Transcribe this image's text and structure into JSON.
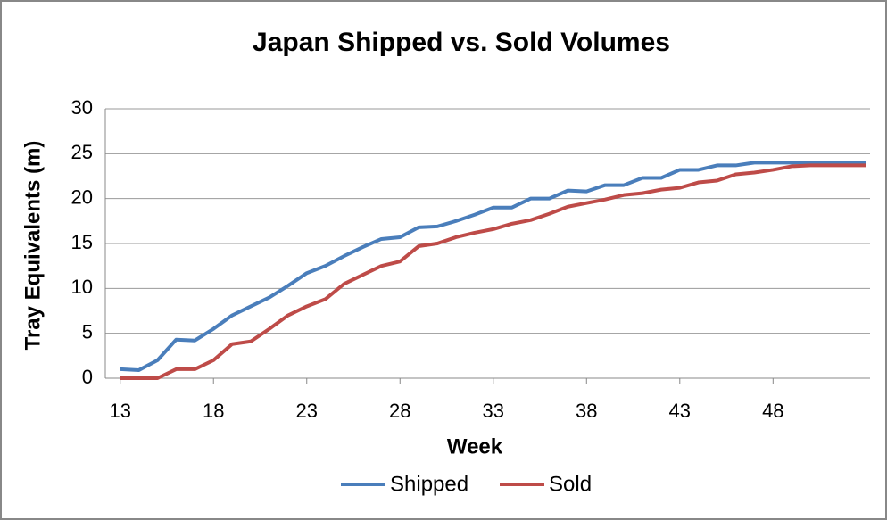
{
  "chart_data": {
    "type": "line",
    "title": "Japan Shipped vs. Sold Volumes",
    "x_label": "Week",
    "y_label": "Tray Equivalents (m)",
    "x": [
      13,
      14,
      15,
      16,
      17,
      18,
      19,
      20,
      21,
      22,
      23,
      24,
      25,
      26,
      27,
      28,
      29,
      30,
      31,
      32,
      33,
      34,
      35,
      36,
      37,
      38,
      39,
      40,
      41,
      42,
      43,
      44,
      45,
      46,
      47,
      48,
      49,
      50,
      51,
      52,
      53
    ],
    "series": [
      {
        "name": "Shipped",
        "color": "#4a7ebb",
        "values": [
          1.0,
          0.9,
          2,
          4.3,
          4.2,
          5.5,
          7,
          8,
          9,
          10.3,
          11.7,
          12.5,
          13.6,
          14.6,
          15.5,
          15.7,
          16.8,
          16.9,
          17.5,
          18.2,
          19,
          19,
          20,
          20,
          20.9,
          20.8,
          21.5,
          21.5,
          22.3,
          22.3,
          23.2,
          23.2,
          23.7,
          23.7,
          24,
          24,
          24,
          24,
          24,
          24,
          24
        ]
      },
      {
        "name": "Sold",
        "color": "#be4b48",
        "values": [
          0,
          0,
          0,
          1,
          1,
          2,
          3.8,
          4.1,
          5.5,
          7,
          8,
          8.8,
          10.5,
          11.5,
          12.5,
          13,
          14.7,
          15,
          15.7,
          16.2,
          16.6,
          17.2,
          17.6,
          18.3,
          19.1,
          19.5,
          19.9,
          20.4,
          20.6,
          21,
          21.2,
          21.8,
          22,
          22.7,
          22.9,
          23.2,
          23.6,
          23.7,
          23.7,
          23.7,
          23.7
        ]
      }
    ],
    "xlim": [
      12.2,
      53.2
    ],
    "xticks": [
      13,
      18,
      23,
      28,
      33,
      38,
      43,
      48
    ],
    "ylim": [
      0,
      30
    ],
    "yticks": [
      0,
      5,
      10,
      15,
      20,
      25,
      30
    ],
    "grid": true,
    "legend": "bottom"
  }
}
